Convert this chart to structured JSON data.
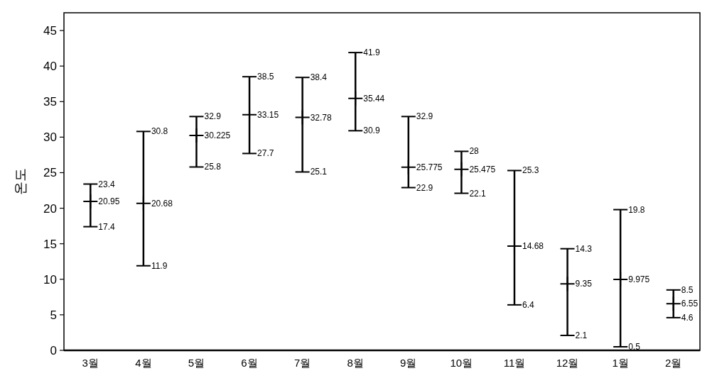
{
  "chart_data": {
    "type": "scatter",
    "ylabel": "온도",
    "categories": [
      "3월",
      "4월",
      "5월",
      "6월",
      "7월",
      "8월",
      "9월",
      "10월",
      "11월",
      "12월",
      "1월",
      "2월"
    ],
    "series": [
      {
        "color": "#000000",
        "values": [
          20.95,
          20.68,
          30.225,
          33.15,
          32.78,
          35.44,
          25.775,
          25.475,
          14.68,
          9.35,
          9.975,
          6.55
        ],
        "errors": [
          [
            17.4,
            23.4
          ],
          [
            11.9,
            30.8
          ],
          [
            25.8,
            32.9
          ],
          [
            27.7,
            38.5
          ],
          [
            25.1,
            38.4
          ],
          [
            30.9,
            41.9
          ],
          [
            22.9,
            32.9
          ],
          [
            22.1,
            28
          ],
          [
            6.4,
            25.3
          ],
          [
            2.1,
            14.3
          ],
          [
            0.5,
            19.8
          ],
          [
            4.6,
            8.5
          ]
        ]
      }
    ],
    "data_labels": true,
    "annotations": [
      {
        "text": "23.4",
        "x": "3월",
        "y": 23.4
      },
      {
        "text": "17.4",
        "x": "3월",
        "y": 17.4
      },
      {
        "text": "30.8",
        "x": "4월",
        "y": 30.8
      },
      {
        "text": "11.9",
        "x": "4월",
        "y": 11.9
      },
      {
        "text": "32.9",
        "x": "5월",
        "y": 32.9
      },
      {
        "text": "25.8",
        "x": "5월",
        "y": 25.8
      },
      {
        "text": "38.5",
        "x": "6월",
        "y": 38.5
      },
      {
        "text": "27.7",
        "x": "6월",
        "y": 27.7
      },
      {
        "text": "38.4",
        "x": "7월",
        "y": 38.4
      },
      {
        "text": "25.1",
        "x": "7월",
        "y": 25.1
      },
      {
        "text": "41.9",
        "x": "8월",
        "y": 41.9
      },
      {
        "text": "30.9",
        "x": "8월",
        "y": 30.9
      },
      {
        "text": "32.9",
        "x": "9월",
        "y": 32.9
      },
      {
        "text": "22.9",
        "x": "9월",
        "y": 22.9
      },
      {
        "text": "28",
        "x": "10월",
        "y": 28
      },
      {
        "text": "22.1",
        "x": "10월",
        "y": 22.1
      },
      {
        "text": "25.3",
        "x": "11월",
        "y": 25.3
      },
      {
        "text": "6.4",
        "x": "11월",
        "y": 6.4
      },
      {
        "text": "14.3",
        "x": "12월",
        "y": 14.3
      },
      {
        "text": "2.1",
        "x": "12월",
        "y": 2.1
      },
      {
        "text": "19.8",
        "x": "1월",
        "y": 19.8
      },
      {
        "text": "0.5",
        "x": "1월",
        "y": 0.5
      },
      {
        "text": "8.5",
        "x": "2월",
        "y": 8.5
      },
      {
        "text": "4.6",
        "x": "2월",
        "y": 4.6
      }
    ],
    "ylim": [
      0,
      47.5
    ],
    "yticks": [
      0,
      5,
      10,
      15,
      20,
      25,
      30,
      35,
      40,
      45
    ],
    "grid": false,
    "marker": "cross"
  }
}
